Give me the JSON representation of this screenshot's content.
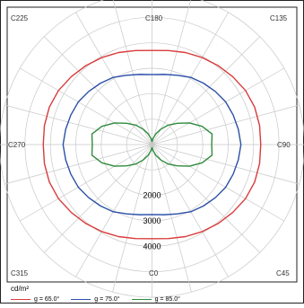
{
  "chart_data": {
    "type": "polar-line",
    "unit": "cd/m²",
    "direction_labels": {
      "top_left": "C225",
      "top": "C180",
      "top_right": "C135",
      "left": "C270",
      "right": "C90",
      "bottom_left": "C315",
      "bottom": "C0",
      "bottom_right": "C45"
    },
    "radial_ticks": [
      "2000",
      "3000",
      "4000"
    ],
    "radial_tick_values": [
      2000,
      3000,
      4000
    ],
    "series": [
      {
        "name": "g = 65.0°",
        "color": "#d93a3a",
        "angles": [
          0,
          10,
          20,
          30,
          40,
          50,
          60,
          70,
          80,
          90,
          100,
          110,
          120,
          130,
          140,
          150,
          160,
          170,
          180,
          190,
          200,
          210,
          220,
          230,
          240,
          250,
          260,
          270,
          280,
          290,
          300,
          310,
          320,
          330,
          340,
          350
        ],
        "values": [
          3700,
          3750,
          3850,
          3950,
          4050,
          4150,
          4250,
          4300,
          4300,
          4280,
          4300,
          4300,
          4250,
          4150,
          4050,
          3950,
          3850,
          3750,
          3700,
          3750,
          3850,
          3950,
          4050,
          4150,
          4250,
          4300,
          4300,
          4280,
          4300,
          4300,
          4250,
          4150,
          4050,
          3950,
          3850,
          3750
        ]
      },
      {
        "name": "g = 75.0°",
        "color": "#2b4fa8",
        "angles": [
          0,
          10,
          20,
          30,
          40,
          50,
          60,
          70,
          80,
          90,
          100,
          110,
          120,
          130,
          140,
          150,
          160,
          170,
          180,
          190,
          200,
          210,
          220,
          230,
          240,
          250,
          260,
          270,
          280,
          290,
          300,
          310,
          320,
          330,
          340,
          350
        ],
        "values": [
          2750,
          2800,
          2900,
          3050,
          3150,
          3250,
          3350,
          3400,
          3450,
          3500,
          3450,
          3400,
          3350,
          3250,
          3150,
          3050,
          2900,
          2800,
          2750,
          2800,
          2900,
          3050,
          3150,
          3250,
          3350,
          3400,
          3450,
          3500,
          3450,
          3400,
          3350,
          3250,
          3150,
          3050,
          2900,
          2800
        ]
      },
      {
        "name": "g = 85.0°",
        "color": "#2e8b3d",
        "angles": [
          0,
          10,
          20,
          30,
          40,
          50,
          60,
          70,
          80,
          90,
          100,
          110,
          120,
          130,
          140,
          150,
          160,
          170,
          180,
          190,
          200,
          210,
          220,
          230,
          240,
          250,
          260,
          270,
          280,
          290,
          300,
          310,
          320,
          330,
          340,
          350
        ],
        "values": [
          120,
          250,
          450,
          700,
          1000,
          1300,
          1700,
          2100,
          2400,
          2350,
          2400,
          2100,
          1700,
          1300,
          1000,
          700,
          450,
          250,
          120,
          250,
          450,
          700,
          1000,
          1300,
          1700,
          2100,
          2400,
          2350,
          2400,
          2100,
          1700,
          1300,
          1000,
          700,
          450,
          250
        ]
      }
    ],
    "grid": true,
    "legend_position": "bottom",
    "colors": {
      "grid": "#c8c8c8",
      "frame": "#222222",
      "label": "#333333"
    }
  }
}
